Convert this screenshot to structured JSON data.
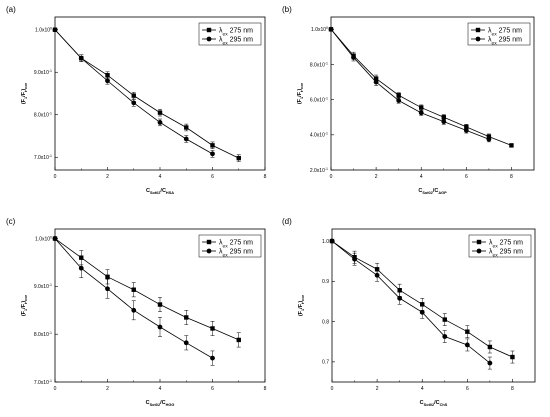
{
  "chart_data": [
    {
      "panel": "(a)",
      "type": "line",
      "xlabel": "C_Sot02/C_HSA",
      "ylabel": "(F_1/F_t)_cor",
      "xlim": [
        0,
        8
      ],
      "ylim": [
        0.67,
        1.03
      ],
      "xticks": [
        "0",
        "2",
        "4",
        "6",
        "8"
      ],
      "yticks": [
        {
          "value": 0.7,
          "label": "7.0x10^-1"
        },
        {
          "value": 0.8,
          "label": "8.0x10^-1"
        },
        {
          "value": 0.9,
          "label": "9.0x10^-1"
        },
        {
          "value": 1.0,
          "label": "1.0x10^0"
        }
      ],
      "legend": "top-right",
      "series": [
        {
          "name": "λex 275 nm",
          "marker": "square",
          "x": [
            0,
            1,
            2,
            3,
            4,
            5,
            6,
            7
          ],
          "y": [
            1.0,
            0.933,
            0.893,
            0.845,
            0.805,
            0.77,
            0.728,
            0.698
          ],
          "err": [
            0,
            0.008,
            0.008,
            0.008,
            0.008,
            0.008,
            0.008,
            0.008
          ]
        },
        {
          "name": "λex 295 nm",
          "marker": "circle",
          "x": [
            0,
            1,
            2,
            3,
            4,
            5,
            6
          ],
          "y": [
            1.0,
            0.933,
            0.88,
            0.828,
            0.782,
            0.743,
            0.708
          ],
          "err": [
            0,
            0.008,
            0.008,
            0.008,
            0.008,
            0.008,
            0.008
          ]
        }
      ]
    },
    {
      "panel": "(b)",
      "type": "line",
      "xlabel": "C_Sot02/C_AGP",
      "ylabel": "(F_1/F_t)_cor",
      "xlim": [
        0,
        9
      ],
      "ylim": [
        0.2,
        1.07
      ],
      "xticks": [
        "0",
        "2",
        "4",
        "6",
        "8"
      ],
      "yticks": [
        {
          "value": 0.2,
          "label": "2.0x10^-1"
        },
        {
          "value": 0.4,
          "label": "4.0x10^-1"
        },
        {
          "value": 0.6,
          "label": "6.0x10^-1"
        },
        {
          "value": 0.8,
          "label": "8.0x10^-1"
        },
        {
          "value": 1.0,
          "label": "1.0x10^0"
        }
      ],
      "legend": "top-right",
      "series": [
        {
          "name": "λex 275 nm",
          "marker": "square",
          "x": [
            0,
            1,
            2,
            3,
            4,
            5,
            6,
            7,
            8
          ],
          "y": [
            1.0,
            0.85,
            0.72,
            0.625,
            0.555,
            0.5,
            0.445,
            0.39,
            0.34
          ],
          "err": [
            0,
            0.02,
            0.02,
            0.015,
            0.015,
            0.015,
            0.015,
            0.015,
            0.0
          ]
        },
        {
          "name": "λex 295 nm",
          "marker": "circle",
          "x": [
            0,
            1,
            2,
            3,
            4,
            5,
            6,
            7
          ],
          "y": [
            1.0,
            0.84,
            0.7,
            0.595,
            0.525,
            0.475,
            0.425,
            0.375
          ],
          "err": [
            0,
            0.02,
            0.02,
            0.015,
            0.015,
            0.015,
            0.015,
            0.015
          ]
        }
      ]
    },
    {
      "panel": "(c)",
      "type": "line",
      "xlabel": "C_Sot02/C_HGG",
      "ylabel": "(F_1/F_t)_cor",
      "xlim": [
        0,
        8
      ],
      "ylim": [
        0.7,
        1.02
      ],
      "xticks": [
        "0",
        "2",
        "4",
        "6",
        "8"
      ],
      "yticks": [
        {
          "value": 0.7,
          "label": "7.0x10^-1"
        },
        {
          "value": 0.8,
          "label": "8.0x10^-1"
        },
        {
          "value": 0.9,
          "label": "9.0x10^-1"
        },
        {
          "value": 1.0,
          "label": "1.0x10^0"
        }
      ],
      "legend": "top-right",
      "series": [
        {
          "name": "λex 275 nm",
          "marker": "square",
          "x": [
            0,
            1,
            2,
            3,
            4,
            5,
            6,
            7
          ],
          "y": [
            1.0,
            0.96,
            0.92,
            0.893,
            0.862,
            0.835,
            0.812,
            0.788
          ],
          "err": [
            0,
            0.015,
            0.015,
            0.015,
            0.015,
            0.015,
            0.015,
            0.015
          ]
        },
        {
          "name": "λex 295 nm",
          "marker": "circle",
          "x": [
            0,
            1,
            2,
            3,
            4,
            5,
            6
          ],
          "y": [
            1.0,
            0.938,
            0.895,
            0.85,
            0.815,
            0.782,
            0.75
          ],
          "err": [
            0,
            0.02,
            0.02,
            0.02,
            0.02,
            0.015,
            0.015
          ]
        }
      ]
    },
    {
      "panel": "(d)",
      "type": "line",
      "xlabel": "C_Sot02/C_ChS",
      "ylabel": "(F_1/F_t)_cor",
      "xlim": [
        0,
        9
      ],
      "ylim": [
        0.65,
        1.03
      ],
      "xticks": [
        "0",
        "2",
        "4",
        "6",
        "8"
      ],
      "yticks": [
        {
          "value": 0.7,
          "label": "0.7"
        },
        {
          "value": 0.8,
          "label": "0.8"
        },
        {
          "value": 0.9,
          "label": "0.9"
        },
        {
          "value": 1.0,
          "label": "1.0"
        }
      ],
      "legend": "top-right",
      "series": [
        {
          "name": "λex 275 nm",
          "marker": "square",
          "x": [
            0,
            1,
            2,
            3,
            4,
            5,
            6,
            7,
            8
          ],
          "y": [
            1.0,
            0.96,
            0.93,
            0.878,
            0.843,
            0.805,
            0.775,
            0.737,
            0.712
          ],
          "err": [
            0,
            0.015,
            0.015,
            0.015,
            0.015,
            0.015,
            0.015,
            0.015,
            0.015
          ]
        },
        {
          "name": "λex 295 nm",
          "marker": "circle",
          "x": [
            0,
            1,
            2,
            3,
            4,
            5,
            6,
            7
          ],
          "y": [
            1.0,
            0.955,
            0.915,
            0.858,
            0.823,
            0.763,
            0.742,
            0.697
          ],
          "err": [
            0,
            0.015,
            0.015,
            0.015,
            0.015,
            0.015,
            0.015,
            0.015
          ]
        }
      ]
    }
  ]
}
